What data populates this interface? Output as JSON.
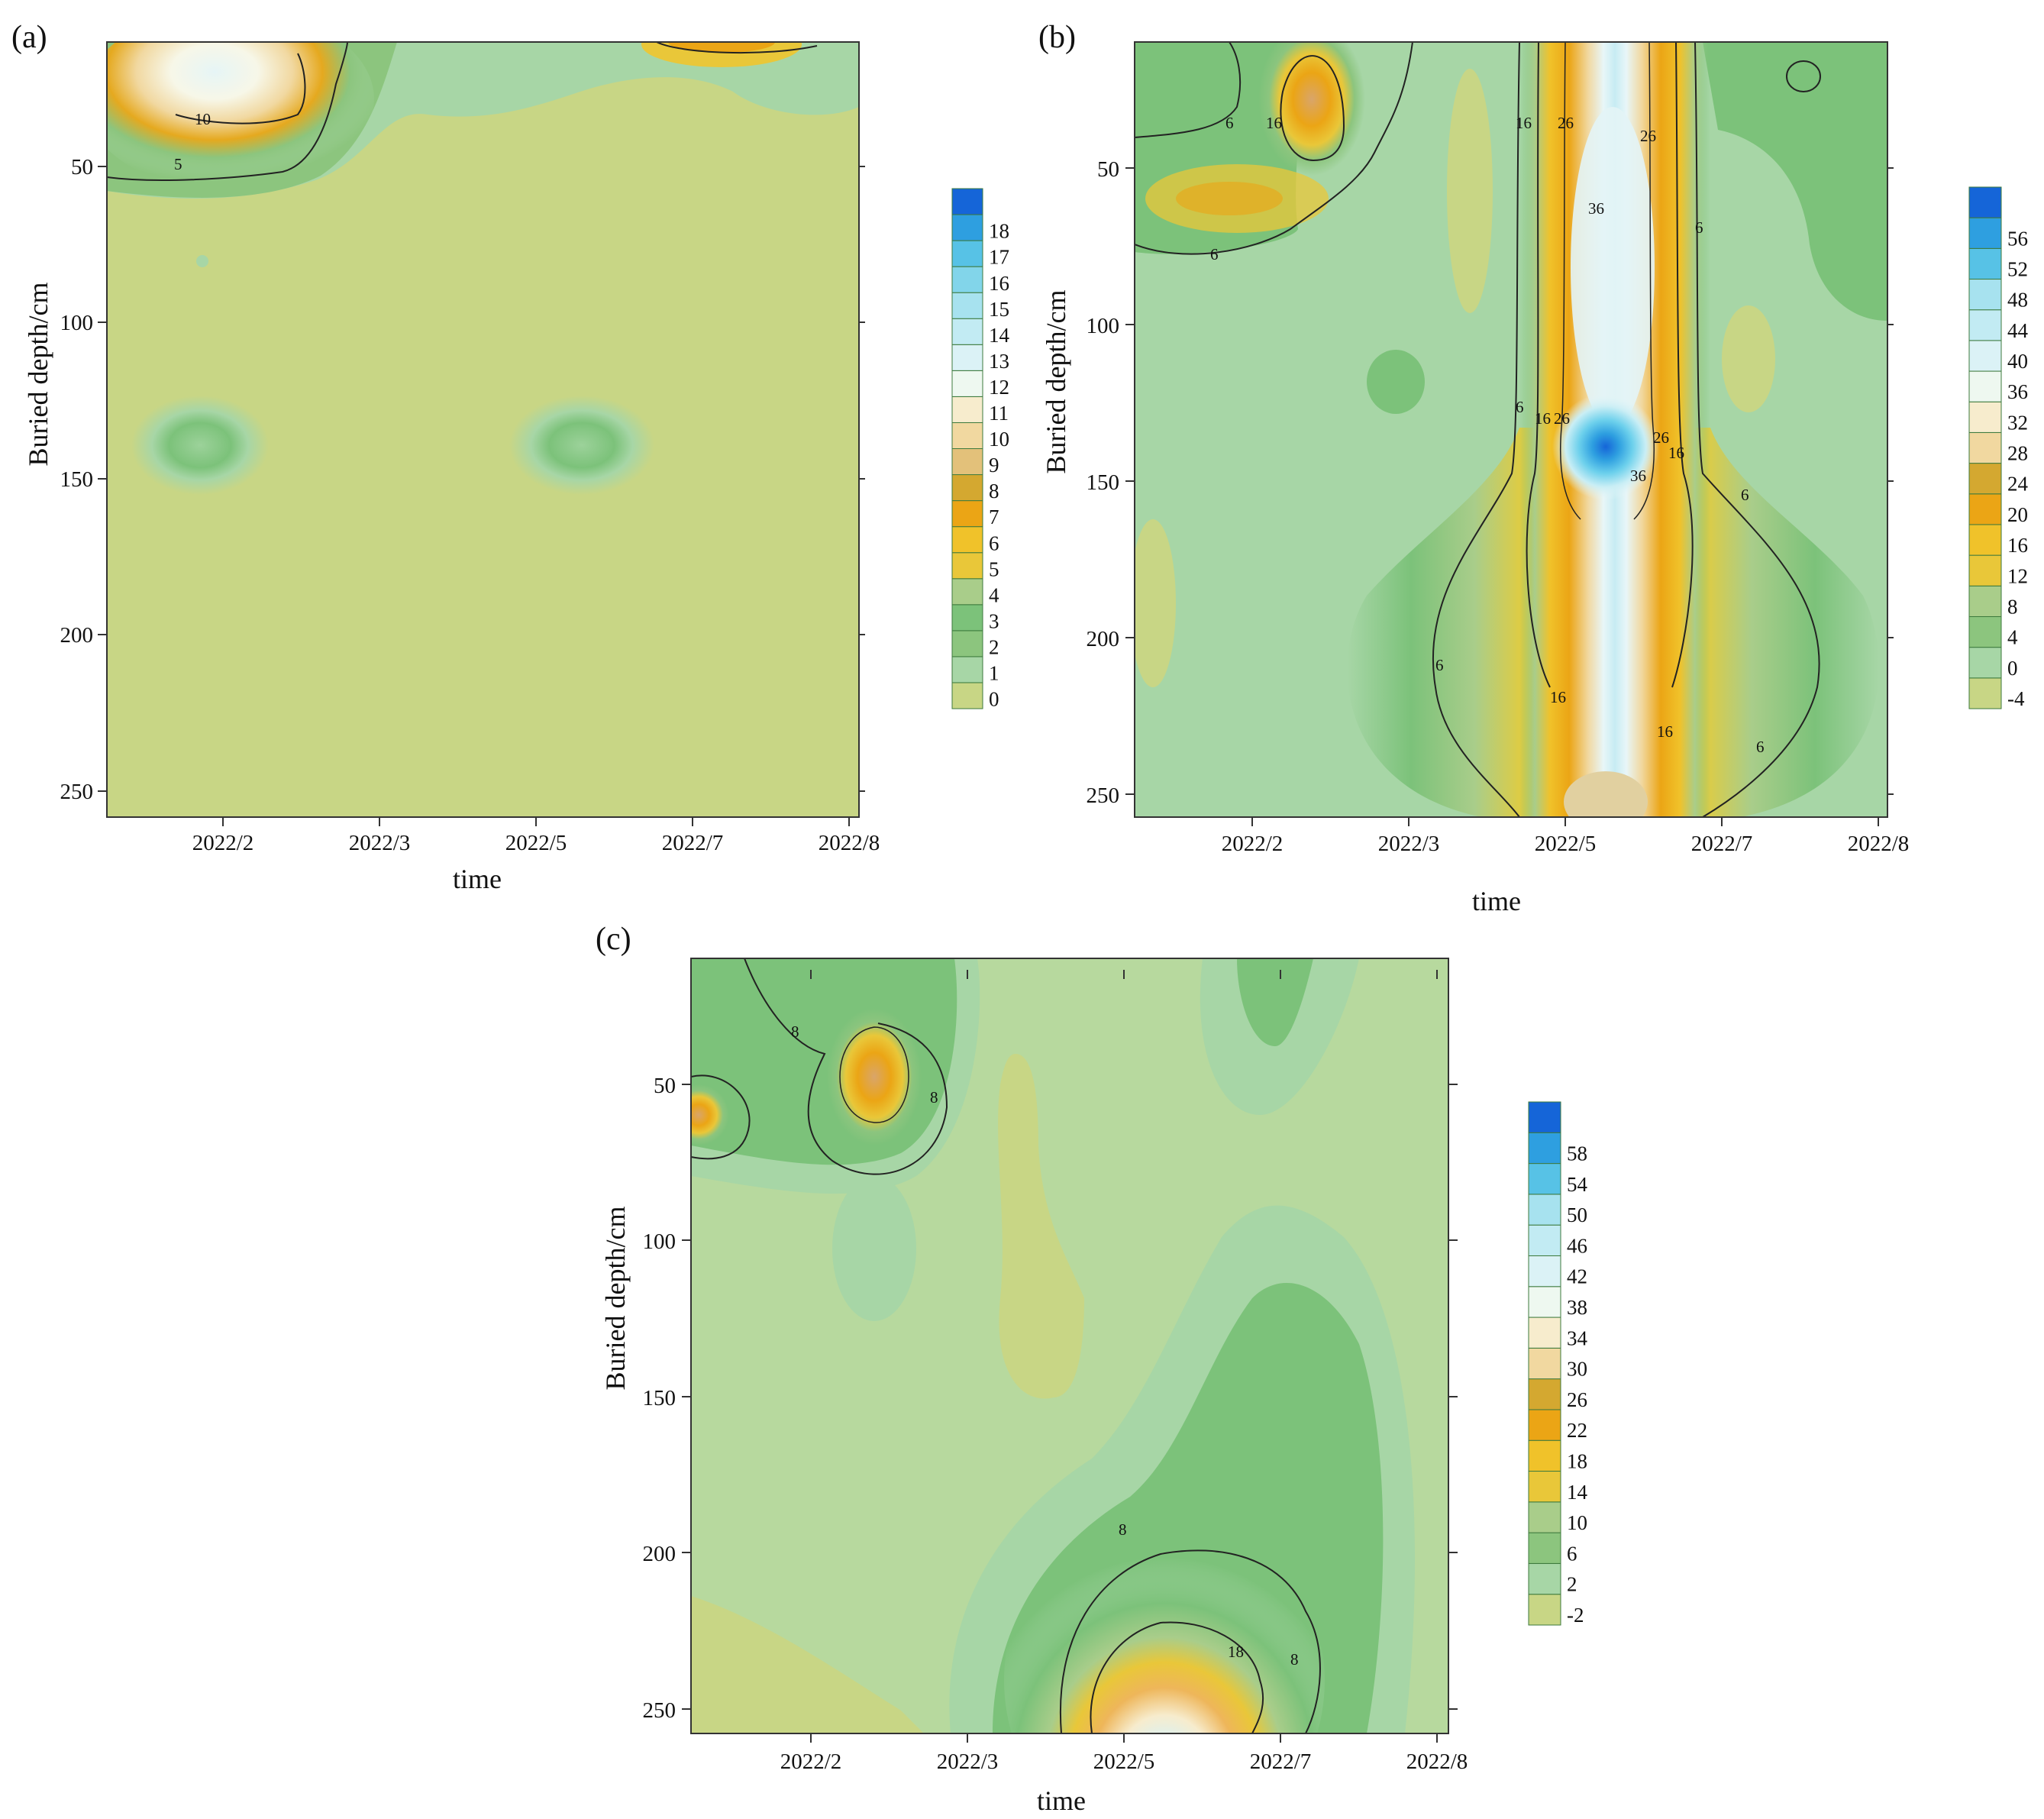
{
  "chart_data": [
    {
      "type": "contour",
      "panel_label": "(a)",
      "xlabel": "time",
      "ylabel": "Buried depth/cm",
      "x_tick_labels": [
        "2022/2",
        "2022/3",
        "2022/5",
        "2022/7",
        "2022/8"
      ],
      "y_ticks": [
        50,
        100,
        150,
        200,
        250
      ],
      "y_range_cm": [
        10,
        260
      ],
      "colorbar_ticks": [
        0,
        1,
        2,
        3,
        4,
        5,
        6,
        7,
        8,
        9,
        10,
        11,
        12,
        13,
        14,
        15,
        16,
        17,
        18
      ],
      "contour_labels": [
        "10",
        "5"
      ],
      "background_level": 0,
      "features": [
        {
          "region": "top-left, Jan-Feb, 10-60 cm",
          "max_level": 14
        },
        {
          "region": "top, July, 10-15 cm",
          "max_level": 6
        },
        {
          "region": "Jan-Feb, 140 cm",
          "max_level": 3
        },
        {
          "region": "May, 140 cm",
          "max_level": 3
        }
      ]
    },
    {
      "type": "contour",
      "panel_label": "(b)",
      "xlabel": "time",
      "ylabel": "Buried depth/cm",
      "x_tick_labels": [
        "2022/2",
        "2022/3",
        "2022/5",
        "2022/7",
        "2022/8"
      ],
      "y_ticks": [
        50,
        100,
        150,
        200,
        250
      ],
      "y_range_cm": [
        10,
        260
      ],
      "colorbar_ticks": [
        -4,
        0,
        4,
        8,
        12,
        16,
        20,
        24,
        28,
        32,
        36,
        40,
        44,
        48,
        52,
        56
      ],
      "contour_labels": [
        "6",
        "16",
        "6",
        "16",
        "26",
        "26",
        "36",
        "6",
        "16",
        "26",
        "26",
        "36",
        "16",
        "6",
        "6",
        "16",
        "16",
        "6",
        "6"
      ],
      "background_level": 0,
      "features": [
        {
          "region": "vertical column, May, 10-260 cm",
          "max_level": 58
        },
        {
          "region": "Feb, 10-50 cm",
          "max_level": 20
        },
        {
          "region": "Jan-Feb, 50-60 cm",
          "max_level": 14
        }
      ]
    },
    {
      "type": "contour",
      "panel_label": "(c)",
      "xlabel": "time",
      "ylabel": "Buried depth/cm",
      "x_tick_labels": [
        "2022/2",
        "2022/3",
        "2022/5",
        "2022/7",
        "2022/8"
      ],
      "y_ticks": [
        50,
        100,
        150,
        200,
        250
      ],
      "y_range_cm": [
        10,
        260
      ],
      "colorbar_ticks": [
        -2,
        2,
        6,
        10,
        14,
        18,
        22,
        26,
        30,
        34,
        38,
        42,
        46,
        50,
        54,
        58
      ],
      "contour_labels": [
        "8",
        "8",
        "8",
        "18",
        "8"
      ],
      "background_level": 2,
      "features": [
        {
          "region": "May-June, 190-260 cm",
          "max_level": 46
        },
        {
          "region": "Feb, 50-70 cm",
          "max_level": 22
        },
        {
          "region": "Jan, 60 cm",
          "max_level": 18
        }
      ]
    }
  ]
}
